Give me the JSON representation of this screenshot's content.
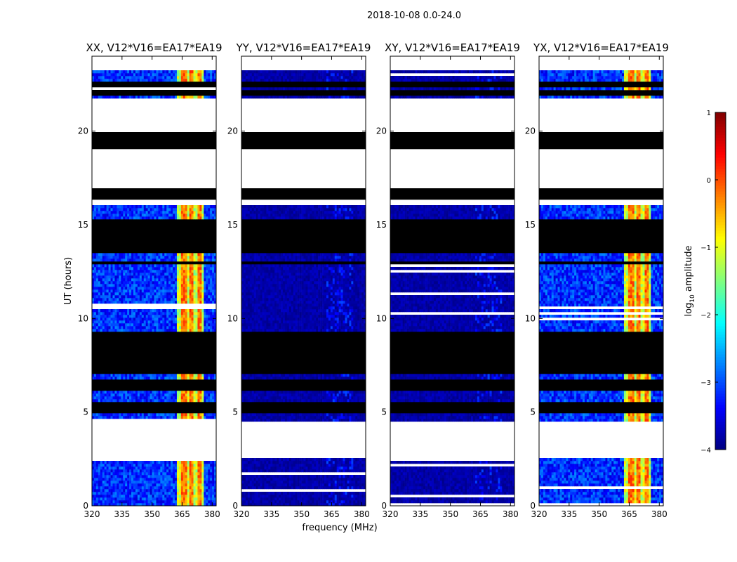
{
  "figure_title": "2018-10-08 0.0-24.0",
  "chart_data": {
    "type": "heatmap",
    "title": "2018-10-08 0.0-24.0",
    "ylabel": "UT (hours)",
    "xlabel": "frequency (MHz)",
    "xlim": [
      320,
      382
    ],
    "ylim": [
      0,
      24
    ],
    "x_ticks": [
      320,
      335,
      350,
      365,
      380
    ],
    "y_ticks": [
      0,
      5,
      10,
      15,
      20
    ],
    "colorbar": {
      "label": "log10 amplitude",
      "label_prefix": "log",
      "label_sub": "10",
      "label_suffix": " amplitude",
      "min": -4,
      "max": 1,
      "ticks": [
        -4,
        -3,
        -2,
        -1,
        0,
        1
      ],
      "tick_labels": [
        "−4",
        "−3",
        "−2",
        "−1",
        "0",
        "1"
      ],
      "colormap": "jet"
    },
    "panels": [
      {
        "title": "XX, V12*V16=EA17*EA19",
        "strength": 1.0
      },
      {
        "title": "YY, V12*V16=EA17*EA19",
        "strength": 0.15
      },
      {
        "title": "XY, V12*V16=EA17*EA19",
        "strength": 0.15
      },
      {
        "title": "YX, V12*V16=EA17*EA19",
        "strength": 1.0
      }
    ],
    "masked_gaps_hours": [
      [
        2.6,
        4.5
      ],
      [
        16.1,
        16.4
      ],
      [
        17.0,
        19.1
      ],
      [
        19.9,
        21.8
      ],
      [
        23.2,
        23.5
      ],
      [
        23.6,
        24.0
      ]
    ],
    "flagged_hours": [
      [
        4.9,
        5.5
      ],
      [
        6.2,
        6.8
      ],
      [
        7.0,
        9.3
      ],
      [
        12.9,
        13.1
      ],
      [
        13.5,
        15.3
      ],
      [
        16.4,
        17.0
      ],
      [
        19.1,
        19.9
      ],
      [
        21.9,
        22.2
      ],
      [
        22.4,
        22.7
      ],
      [
        23.5,
        23.6
      ]
    ],
    "rfi_band_mhz": [
      362,
      376
    ],
    "bright_channels_mhz": [
      366,
      370,
      374
    ]
  }
}
